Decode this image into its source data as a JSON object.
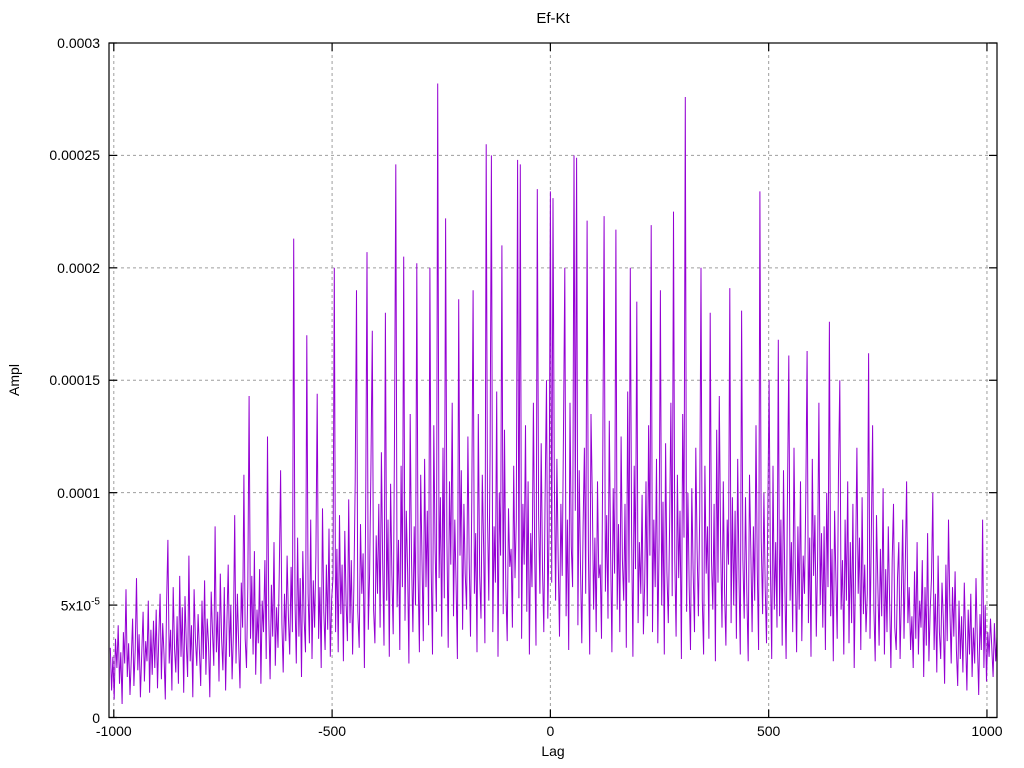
{
  "chart_data": {
    "type": "line",
    "title": "Ef-Kt",
    "xlabel": "Lag",
    "ylabel": "Ampl",
    "series_name": "Ef-Kt",
    "series_color": "#9400d3",
    "background": "#ffffff",
    "grid": true,
    "legend": "none",
    "xlim": [
      -1011,
      1023
    ],
    "ylim_e6": [
      0,
      300
    ],
    "values_unit": "1e-6",
    "x_ticks": [
      {
        "v": -1000,
        "label": "-1000"
      },
      {
        "v": -500,
        "label": "-500"
      },
      {
        "v": 0,
        "label": "0"
      },
      {
        "v": 500,
        "label": "500"
      },
      {
        "v": 1000,
        "label": "1000"
      }
    ],
    "y_ticks": [
      {
        "v_e6": 0,
        "label": "0"
      },
      {
        "v_e6": 50,
        "label": "5x10",
        "sup": "-5"
      },
      {
        "v_e6": 100,
        "label": "0.0001"
      },
      {
        "v_e6": 150,
        "label": "0.00015"
      },
      {
        "v_e6": 200,
        "label": "0.0002"
      },
      {
        "v_e6": 250,
        "label": "0.00025"
      },
      {
        "v_e6": 300,
        "label": "0.0003"
      }
    ],
    "x_start": -1008,
    "x_step": 3,
    "values_e6": [
      31,
      12,
      27,
      8,
      35,
      22,
      41,
      15,
      29,
      6,
      38,
      24,
      57,
      18,
      33,
      10,
      26,
      44,
      14,
      30,
      62,
      21,
      37,
      9,
      28,
      47,
      16,
      34,
      25,
      52,
      11,
      39,
      19,
      43,
      22,
      48,
      13,
      36,
      55,
      17,
      42,
      28,
      8,
      51,
      79,
      24,
      39,
      12,
      58,
      31,
      20,
      45,
      15,
      63,
      27,
      49,
      11,
      54,
      33,
      18,
      72,
      25,
      41,
      9,
      57,
      35,
      23,
      46,
      30,
      14,
      52,
      26,
      61,
      19,
      44,
      33,
      9,
      56,
      38,
      23,
      85,
      29,
      47,
      16,
      64,
      35,
      21,
      58,
      12,
      42,
      68,
      27,
      50,
      17,
      37,
      90,
      24,
      55,
      32,
      13,
      60,
      40,
      108,
      35,
      22,
      58,
      143,
      35,
      63,
      28,
      74,
      19,
      48,
      33,
      66,
      15,
      52,
      38,
      70,
      26,
      125,
      44,
      17,
      59,
      36,
      78,
      23,
      49,
      31,
      65,
      110,
      42,
      20,
      55,
      34,
      72,
      45,
      28,
      67,
      38,
      213,
      52,
      24,
      80,
      36,
      62,
      18,
      74,
      43,
      29,
      170,
      55,
      33,
      88,
      26,
      61,
      40,
      72,
      144,
      35,
      58,
      22,
      93,
      47,
      30,
      68,
      39,
      84,
      27,
      53,
      62,
      200,
      38,
      75,
      29,
      90,
      46,
      68,
      25,
      83,
      51,
      34,
      97,
      42,
      70,
      28,
      59,
      105,
      190,
      47,
      31,
      86,
      55,
      73,
      22,
      94,
      207,
      39,
      64,
      110,
      172,
      48,
      33,
      81,
      55,
      95,
      40,
      118,
      68,
      32,
      180,
      52,
      88,
      27,
      104,
      63,
      37,
      125,
      246,
      49,
      79,
      30,
      112,
      58,
      205,
      43,
      92,
      66,
      24,
      135,
      71,
      38,
      85,
      50,
      202,
      64,
      29,
      108,
      70,
      34,
      115,
      58,
      92,
      41,
      200,
      66,
      28,
      130,
      75,
      47,
      282,
      62,
      98,
      36,
      120,
      53,
      222,
      80,
      31,
      105,
      68,
      140,
      45,
      88,
      59,
      26,
      186,
      72,
      110,
      39,
      95,
      64,
      48,
      125,
      70,
      36,
      98,
      190,
      55,
      82,
      29,
      135,
      63,
      44,
      108,
      77,
      33,
      255,
      90,
      52,
      118,
      250,
      38,
      85,
      60,
      145,
      27,
      100,
      72,
      210,
      46,
      128,
      58,
      34,
      93,
      67,
      75,
      40,
      112,
      62,
      88,
      248,
      53,
      246,
      35,
      95,
      68,
      130,
      47,
      105,
      28,
      82,
      58,
      140,
      73,
      32,
      235,
      90,
      55,
      122,
      66,
      38,
      98,
      150,
      44,
      85,
      234,
      60,
      231,
      108,
      52,
      115,
      70,
      36,
      95,
      63,
      128,
      200,
      45,
      88,
      30,
      140,
      76,
      58,
      250,
      92,
      249,
      41,
      110,
      67,
      33,
      85,
      120,
      55,
      221,
      74,
      28,
      135,
      98,
      48,
      80,
      38,
      105,
      62,
      68,
      35,
      118,
      223,
      56,
      90,
      44,
      132,
      75,
      29,
      102,
      64,
      217,
      48,
      86,
      38,
      125,
      70,
      52,
      95,
      31,
      145,
      60,
      200,
      82,
      27,
      112,
      66,
      185,
      42,
      78,
      55,
      99,
      37,
      60,
      105,
      45,
      130,
      72,
      219,
      38,
      88,
      58,
      115,
      33,
      78,
      190,
      50,
      96,
      28,
      122,
      65,
      42,
      85,
      140,
      54,
      225,
      70,
      36,
      108,
      62,
      92,
      26,
      135,
      80,
      276,
      47,
      100,
      58,
      30,
      102,
      66,
      38,
      120,
      75,
      45,
      90,
      200,
      52,
      28,
      112,
      64,
      85,
      35,
      180,
      70,
      48,
      95,
      25,
      128,
      60,
      143,
      78,
      40,
      105,
      55,
      32,
      88,
      68,
      191,
      42,
      98,
      50,
      92,
      35,
      115,
      62,
      28,
      181,
      70,
      44,
      98,
      56,
      25,
      108,
      75,
      38,
      85,
      52,
      130,
      65,
      30,
      234,
      80,
      46,
      100,
      58,
      33,
      90,
      150,
      68,
      26,
      112,
      48,
      78,
      40,
      168,
      45,
      88,
      32,
      110,
      60,
      26,
      95,
      161,
      52,
      78,
      38,
      120,
      66,
      29,
      85,
      48,
      105,
      34,
      72,
      55,
      98,
      163,
      42,
      80,
      27,
      115,
      63,
      90,
      36,
      70,
      140,
      50,
      82,
      40,
      85,
      30,
      100,
      58,
      176,
      45,
      75,
      25,
      92,
      62,
      35,
      110,
      150,
      48,
      70,
      28,
      88,
      52,
      105,
      33,
      78,
      42,
      95,
      22,
      65,
      120,
      55,
      80,
      30,
      98,
      46,
      68,
      38,
      55,
      162,
      35,
      80,
      130,
      48,
      25,
      90,
      60,
      32,
      75,
      45,
      102,
      28,
      66,
      38,
      85,
      52,
      22,
      70,
      95,
      40,
      30,
      62,
      78,
      26,
      55,
      88,
      35,
      68,
      105,
      42,
      58,
      30,
      45,
      22,
      65,
      35,
      78,
      28,
      52,
      40,
      70,
      18,
      58,
      32,
      82,
      25,
      48,
      62,
      100,
      30,
      55,
      20,
      72,
      38,
      26,
      60,
      44,
      15,
      68,
      34,
      88,
      50,
      24,
      58,
      36,
      65,
      30,
      14,
      52,
      26,
      45,
      20,
      60,
      35,
      12,
      48,
      28,
      55,
      18,
      40,
      24,
      62,
      33,
      10,
      46,
      30,
      88,
      22,
      50,
      16,
      38,
      27,
      44,
      31,
      18,
      42,
      25,
      36
    ]
  }
}
